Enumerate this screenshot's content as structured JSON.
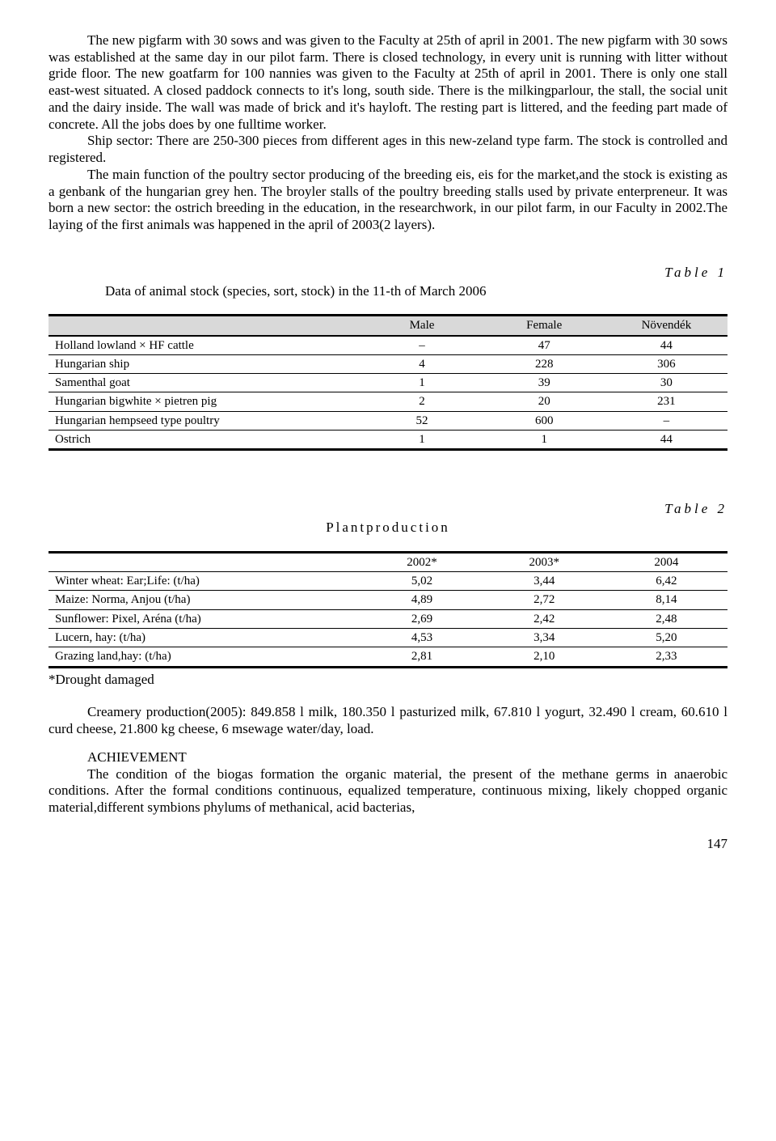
{
  "body": {
    "p1": "The new pigfarm with 30 sows and was given to the Faculty at 25th of april in 2001. The new pigfarm with 30 sows was established at the same day in our pilot farm. There is closed technology, in every unit is running with litter without gride floor. The new goatfarm for 100 nannies was given to the Faculty at 25th of april in 2001. There is only one stall east-west situated. A closed paddock connects to it's long, south side. There is the milkingparlour, the stall, the social unit and the dairy inside. The wall was made of brick and it's hayloft. The resting part is littered, and the feeding part made of concrete. All the jobs does by one fulltime worker.",
    "p2": "Ship sector: There are 250-300 pieces from different ages in this new-zeland type farm. The stock is controlled and registered.",
    "p3": "The main function of the poultry sector producing of the breeding eis, eis for the market,and the stock is existing as a genbank of the hungarian grey hen. The broyler stalls of the poultry breeding stalls used by private enterpreneur. It was born a new sector: the ostrich breeding in the education, in the researchwork, in our pilot farm, in our Faculty in 2002.The laying of the first animals was happened in the april of 2003(2 layers).",
    "creamery": "Creamery production(2005): 849.858 l milk, 180.350 l pasturized milk, 67.810 l yogurt, 32.490 l cream, 60.610 l curd cheese, 21.800 kg cheese, 6 msewage water/day, load.",
    "achievement_heading": "ACHIEVEMENT",
    "achievement_body": "The condition of the biogas formation the organic material, the present of the methane germs in anaerobic conditions. After the formal conditions continuous, equalized temperature, continuous mixing, likely chopped organic material,different symbions phylums of methanical, acid bacterias,"
  },
  "table1": {
    "label": "Table 1",
    "caption": "Data of animal stock (species, sort, stock) in the 11-th of March 2006",
    "columns": [
      "",
      "Male",
      "Female",
      "Növendék"
    ],
    "rows": [
      [
        "Holland lowland × HF cattle",
        "–",
        "47",
        "44"
      ],
      [
        "Hungarian ship",
        "4",
        "228",
        "306"
      ],
      [
        "Samenthal goat",
        "1",
        "39",
        "30"
      ],
      [
        "Hungarian bigwhite × pietren pig",
        "2",
        "20",
        "231"
      ],
      [
        "Hungarian hempseed type poultry",
        "52",
        "600",
        "–"
      ],
      [
        "Ostrich",
        "1",
        "1",
        "44"
      ]
    ],
    "col_widths": [
      "46%",
      "18%",
      "18%",
      "18%"
    ]
  },
  "table2": {
    "label": "Table 2",
    "caption": "Plantproduction",
    "columns": [
      "",
      "2002*",
      "2003*",
      "2004"
    ],
    "rows": [
      [
        "Winter wheat: Ear;Life: (t/ha)",
        "5,02",
        "3,44",
        "6,42"
      ],
      [
        "Maize: Norma, Anjou (t/ha)",
        "4,89",
        "2,72",
        "8,14"
      ],
      [
        "Sunflower: Pixel, Aréna (t/ha)",
        "2,69",
        "2,42",
        "2,48"
      ],
      [
        "Lucern, hay: (t/ha)",
        "4,53",
        "3,34",
        "5,20"
      ],
      [
        "Grazing land,hay: (t/ha)",
        "2,81",
        "2,10",
        "2,33"
      ]
    ],
    "footnote": "*Drought damaged",
    "col_widths": [
      "46%",
      "18%",
      "18%",
      "18%"
    ]
  },
  "page_number": "147"
}
